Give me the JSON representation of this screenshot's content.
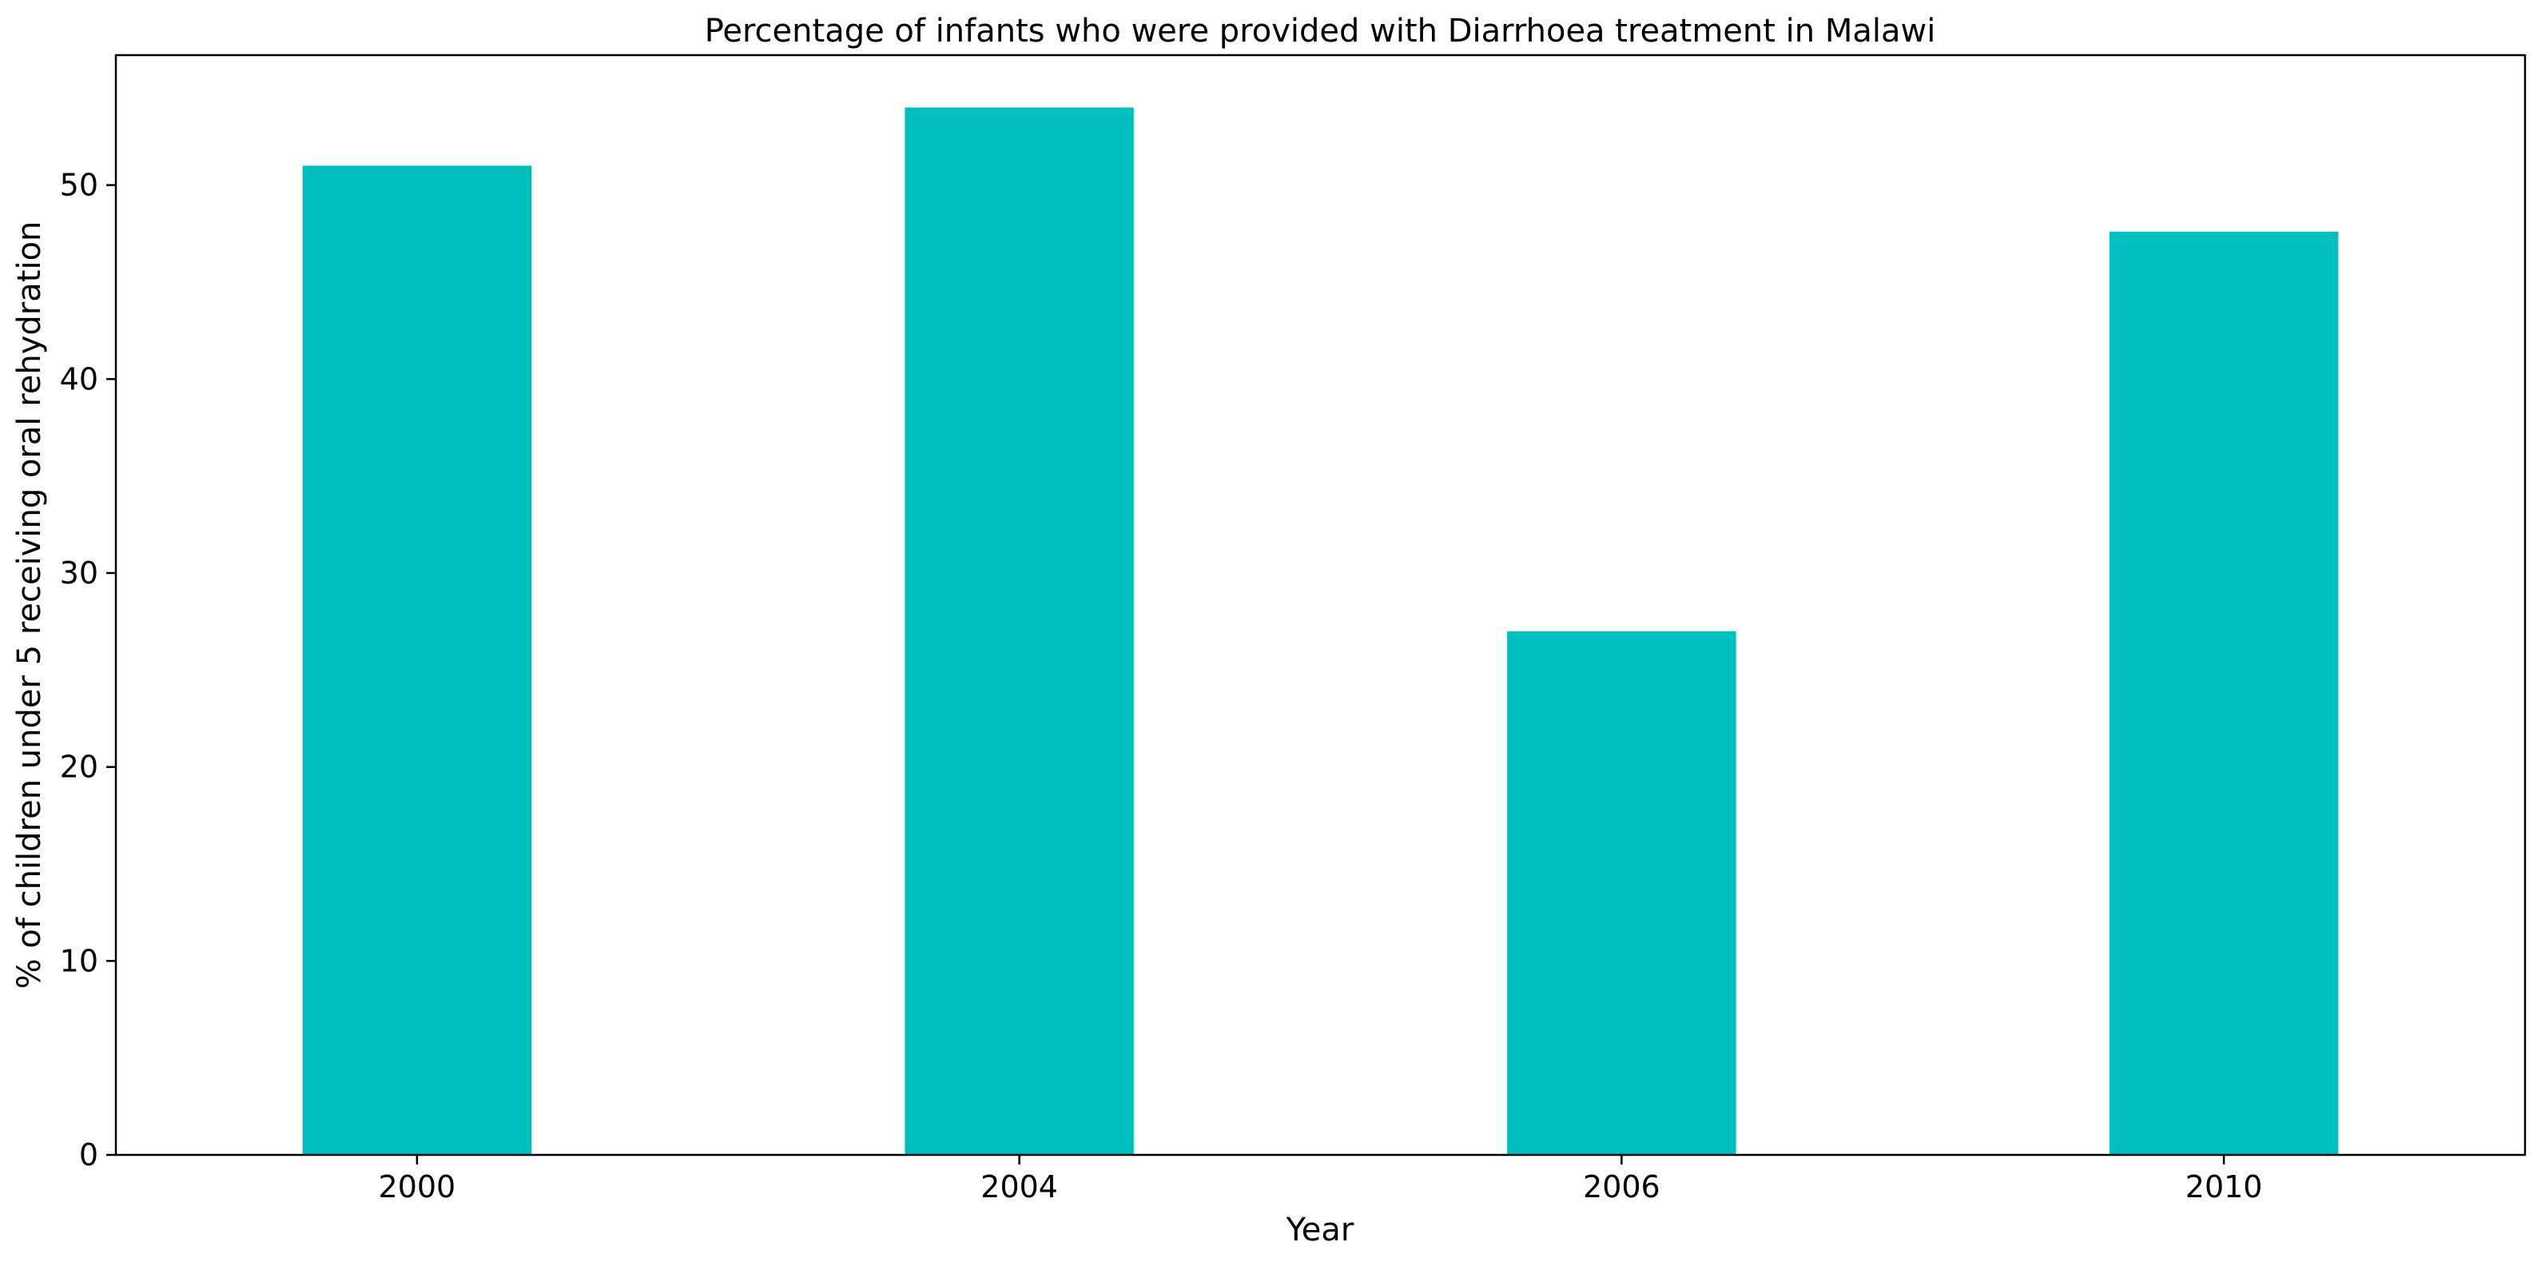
{
  "chart_data": {
    "type": "bar",
    "title": "Percentage of infants who were provided with Diarrhoea treatment in Malawi",
    "xlabel": "Year",
    "ylabel": "% of children under 5 receiving oral rehydration",
    "categories": [
      "2000",
      "2004",
      "2006",
      "2010"
    ],
    "values": [
      51,
      54,
      27,
      47.6
    ],
    "ylim": [
      0,
      56.7
    ],
    "yticks": [
      0,
      10,
      20,
      30,
      40,
      50
    ],
    "bar_color": "#00BFBF",
    "grid": false,
    "legend": "none"
  }
}
